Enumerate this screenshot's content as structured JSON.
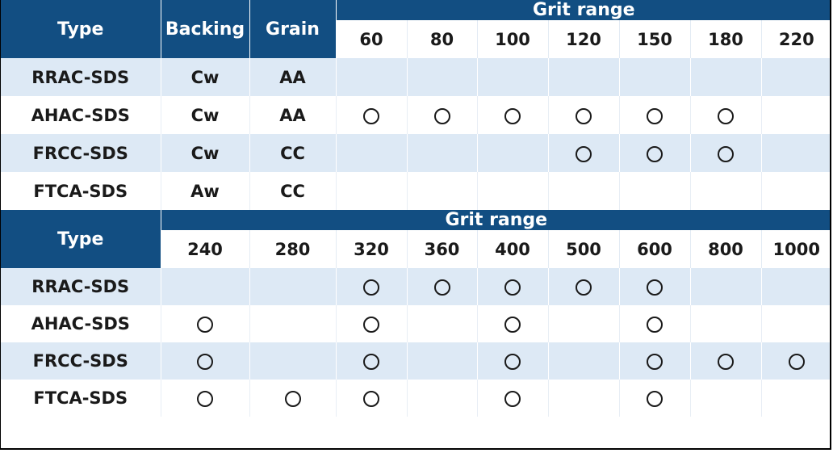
{
  "headers": {
    "type": "Type",
    "backing": "Backing",
    "grain": "Grain",
    "grit_range": "Grit range"
  },
  "table1": {
    "grits": [
      "60",
      "80",
      "100",
      "120",
      "150",
      "180",
      "220"
    ],
    "rows": [
      {
        "type": "RRAC-SDS",
        "backing": "Cw",
        "grain": "AA",
        "marks": [
          0,
          0,
          0,
          0,
          0,
          0,
          0
        ]
      },
      {
        "type": "AHAC-SDS",
        "backing": "Cw",
        "grain": "AA",
        "marks": [
          1,
          1,
          1,
          1,
          1,
          1,
          0
        ]
      },
      {
        "type": "FRCC-SDS",
        "backing": "Cw",
        "grain": "CC",
        "marks": [
          0,
          0,
          0,
          1,
          1,
          1,
          0
        ]
      },
      {
        "type": "FTCA-SDS",
        "backing": "Aw",
        "grain": "CC",
        "marks": [
          0,
          0,
          0,
          0,
          0,
          0,
          0
        ]
      }
    ]
  },
  "table2": {
    "grits": [
      "240",
      "280",
      "320",
      "360",
      "400",
      "500",
      "600",
      "800",
      "1000"
    ],
    "rows": [
      {
        "type": "RRAC-SDS",
        "marks": [
          0,
          0,
          1,
          1,
          1,
          1,
          1,
          0,
          0
        ]
      },
      {
        "type": "AHAC-SDS",
        "marks": [
          1,
          0,
          1,
          0,
          1,
          0,
          1,
          0,
          0
        ]
      },
      {
        "type": "FRCC-SDS",
        "marks": [
          1,
          0,
          1,
          0,
          1,
          0,
          1,
          1,
          1
        ]
      },
      {
        "type": "FTCA-SDS",
        "marks": [
          1,
          1,
          1,
          0,
          1,
          0,
          1,
          0,
          0
        ]
      }
    ]
  },
  "mark_symbol": "circle"
}
